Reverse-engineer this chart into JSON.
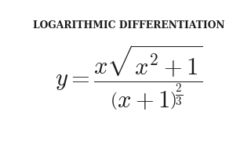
{
  "title_text": "LOGARITHMIC DIFFERENTIATION",
  "background_color": "#ffffff",
  "text_color": "#1a1a1a",
  "title_fontsize": 8.8,
  "formula_fontsize": 22,
  "fig_width": 3.2,
  "fig_height": 1.8,
  "dpi": 100
}
